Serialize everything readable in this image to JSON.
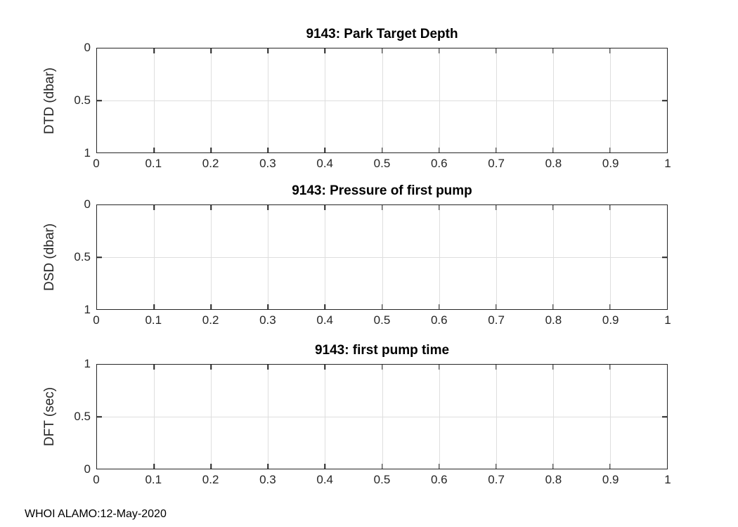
{
  "figure": {
    "footer": "WHOI ALAMO:12-May-2020",
    "background": "#ffffff"
  },
  "colors": {
    "axis": "#262626",
    "grid": "#dedede",
    "title": "#000000",
    "tick_label": "#262626"
  },
  "chart_data": [
    {
      "type": "line",
      "title": "9143: Park Target Depth",
      "xlabel": "",
      "ylabel": "DTD (dbar)",
      "xlim": [
        0,
        1
      ],
      "ylim": [
        0,
        1
      ],
      "y_axis_direction": "reverse",
      "xticks": [
        0,
        0.1,
        0.2,
        0.3,
        0.4,
        0.5,
        0.6,
        0.7,
        0.8,
        0.9,
        1
      ],
      "yticks": [
        0,
        0.5,
        1
      ],
      "grid": true,
      "box": true,
      "series": []
    },
    {
      "type": "line",
      "title": "9143: Pressure of first pump",
      "xlabel": "",
      "ylabel": "DSD (dbar)",
      "xlim": [
        0,
        1
      ],
      "ylim": [
        0,
        1
      ],
      "y_axis_direction": "reverse",
      "xticks": [
        0,
        0.1,
        0.2,
        0.3,
        0.4,
        0.5,
        0.6,
        0.7,
        0.8,
        0.9,
        1
      ],
      "yticks": [
        0,
        0.5,
        1
      ],
      "grid": true,
      "box": true,
      "series": []
    },
    {
      "type": "line",
      "title": "9143: first pump time",
      "xlabel": "",
      "ylabel": "DFT (sec)",
      "xlim": [
        0,
        1
      ],
      "ylim": [
        0,
        1
      ],
      "y_axis_direction": "normal",
      "xticks": [
        0,
        0.1,
        0.2,
        0.3,
        0.4,
        0.5,
        0.6,
        0.7,
        0.8,
        0.9,
        1
      ],
      "yticks": [
        0,
        0.5,
        1
      ],
      "grid": true,
      "box": true,
      "series": []
    }
  ],
  "subplots": [
    {
      "title": "9143: Park Target Depth",
      "ylabel": "DTD (dbar)",
      "yticklabels": [
        "0",
        "0.5",
        "1"
      ],
      "xticklabels": [
        "0",
        "0.1",
        "0.2",
        "0.3",
        "0.4",
        "0.5",
        "0.6",
        "0.7",
        "0.8",
        "0.9",
        "1"
      ]
    },
    {
      "title": "9143: Pressure of first pump",
      "ylabel": "DSD (dbar)",
      "yticklabels": [
        "0",
        "0.5",
        "1"
      ],
      "xticklabels": [
        "0",
        "0.1",
        "0.2",
        "0.3",
        "0.4",
        "0.5",
        "0.6",
        "0.7",
        "0.8",
        "0.9",
        "1"
      ]
    },
    {
      "title": "9143: first pump time",
      "ylabel": "DFT (sec)",
      "yticklabels": [
        "1",
        "0.5",
        "0"
      ],
      "xticklabels": [
        "0",
        "0.1",
        "0.2",
        "0.3",
        "0.4",
        "0.5",
        "0.6",
        "0.7",
        "0.8",
        "0.9",
        "1"
      ]
    }
  ]
}
